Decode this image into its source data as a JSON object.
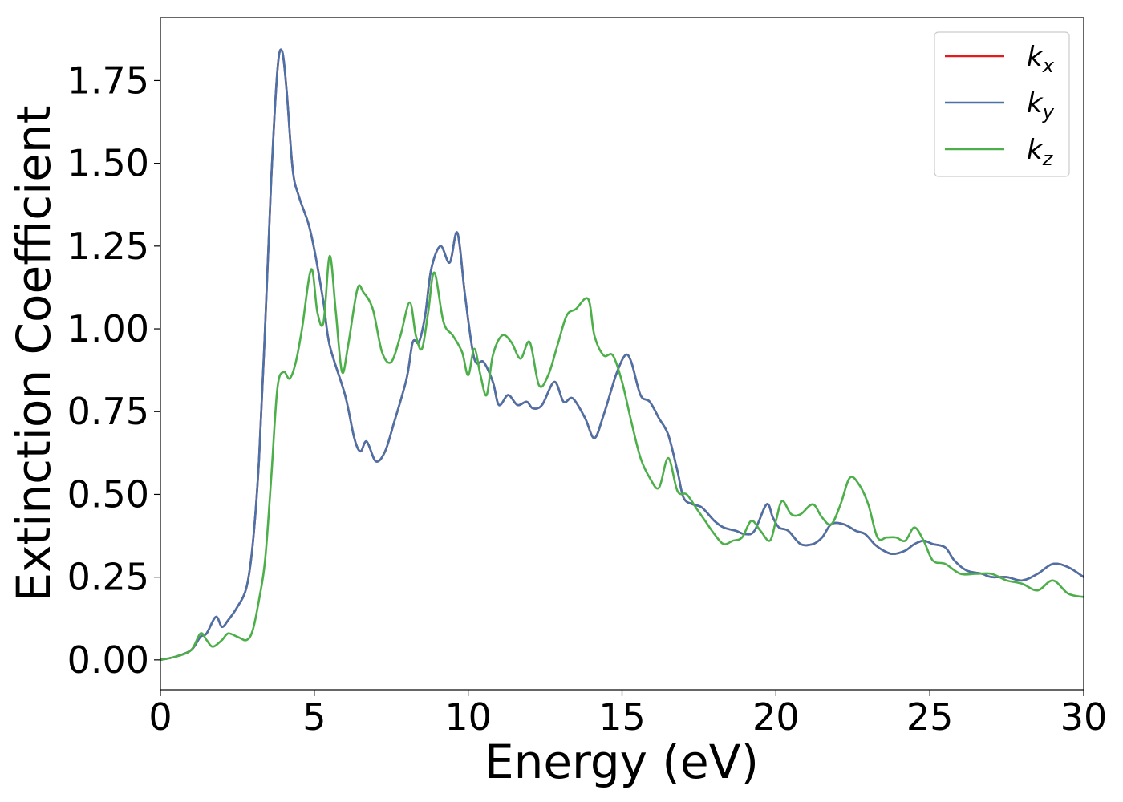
{
  "chart_data": {
    "type": "line",
    "xlabel": "Energy (eV)",
    "ylabel": "Extinction Coefficient",
    "xlim": [
      0,
      30
    ],
    "ylim": [
      -0.09,
      1.94
    ],
    "xticks": [
      0,
      5,
      10,
      15,
      20,
      25,
      30
    ],
    "yticks": [
      0.0,
      0.25,
      0.5,
      0.75,
      1.0,
      1.25,
      1.5,
      1.75
    ],
    "xtick_labels": [
      "0",
      "5",
      "10",
      "15",
      "20",
      "25",
      "30"
    ],
    "ytick_labels": [
      "0.00",
      "0.25",
      "0.50",
      "0.75",
      "1.00",
      "1.25",
      "1.50",
      "1.75"
    ],
    "grid": false,
    "legend_position": "top-right",
    "series": [
      {
        "name": "k_x",
        "label_main": "k",
        "label_sub": "x",
        "color": "#e41a1c",
        "x": [
          0.0,
          0.5,
          1.0,
          1.3,
          1.5,
          1.8,
          2.0,
          2.2,
          2.5,
          2.8,
          3.0,
          3.2,
          3.4,
          3.6,
          3.8,
          3.95,
          4.1,
          4.3,
          4.5,
          4.8,
          5.0,
          5.3,
          5.5,
          6.0,
          6.3,
          6.5,
          6.7,
          7.0,
          7.3,
          7.6,
          8.0,
          8.2,
          8.4,
          8.6,
          8.8,
          9.1,
          9.4,
          9.65,
          9.9,
          10.2,
          10.5,
          10.8,
          11.0,
          11.3,
          11.6,
          11.9,
          12.1,
          12.4,
          12.8,
          13.1,
          13.4,
          13.8,
          14.1,
          14.4,
          14.8,
          15.1,
          15.3,
          15.6,
          15.9,
          16.2,
          16.5,
          16.8,
          17.0,
          17.3,
          17.6,
          18.0,
          18.3,
          18.7,
          19.0,
          19.3,
          19.7,
          19.9,
          20.1,
          20.4,
          20.8,
          21.2,
          21.5,
          21.8,
          22.2,
          22.6,
          22.9,
          23.2,
          23.5,
          23.8,
          24.2,
          24.5,
          24.8,
          25.1,
          25.5,
          25.8,
          26.2,
          26.7,
          27.0,
          27.5,
          28.0,
          28.5,
          29.0,
          29.5,
          30.0
        ],
        "y": [
          0.0,
          0.01,
          0.03,
          0.07,
          0.08,
          0.13,
          0.1,
          0.12,
          0.16,
          0.22,
          0.35,
          0.6,
          1.0,
          1.45,
          1.78,
          1.84,
          1.72,
          1.48,
          1.4,
          1.32,
          1.24,
          1.08,
          0.95,
          0.8,
          0.67,
          0.63,
          0.66,
          0.6,
          0.63,
          0.72,
          0.85,
          0.96,
          0.96,
          1.04,
          1.18,
          1.25,
          1.2,
          1.29,
          1.1,
          0.91,
          0.9,
          0.84,
          0.77,
          0.8,
          0.77,
          0.78,
          0.76,
          0.77,
          0.84,
          0.78,
          0.79,
          0.73,
          0.67,
          0.74,
          0.86,
          0.92,
          0.9,
          0.8,
          0.78,
          0.73,
          0.68,
          0.57,
          0.49,
          0.47,
          0.46,
          0.42,
          0.4,
          0.39,
          0.38,
          0.39,
          0.47,
          0.43,
          0.4,
          0.39,
          0.35,
          0.35,
          0.37,
          0.41,
          0.41,
          0.39,
          0.38,
          0.35,
          0.33,
          0.32,
          0.33,
          0.35,
          0.36,
          0.35,
          0.34,
          0.3,
          0.27,
          0.26,
          0.25,
          0.25,
          0.24,
          0.26,
          0.29,
          0.28,
          0.25
        ]
      },
      {
        "name": "k_y",
        "label_main": "k",
        "label_sub": "y",
        "color": "#4a72a8",
        "x": [
          0.0,
          0.5,
          1.0,
          1.3,
          1.5,
          1.8,
          2.0,
          2.2,
          2.5,
          2.8,
          3.0,
          3.2,
          3.4,
          3.6,
          3.8,
          3.95,
          4.1,
          4.3,
          4.5,
          4.8,
          5.0,
          5.3,
          5.5,
          6.0,
          6.3,
          6.5,
          6.7,
          7.0,
          7.3,
          7.6,
          8.0,
          8.2,
          8.4,
          8.6,
          8.8,
          9.1,
          9.4,
          9.65,
          9.9,
          10.2,
          10.5,
          10.8,
          11.0,
          11.3,
          11.6,
          11.9,
          12.1,
          12.4,
          12.8,
          13.1,
          13.4,
          13.8,
          14.1,
          14.4,
          14.8,
          15.1,
          15.3,
          15.6,
          15.9,
          16.2,
          16.5,
          16.8,
          17.0,
          17.3,
          17.6,
          18.0,
          18.3,
          18.7,
          19.0,
          19.3,
          19.7,
          19.9,
          20.1,
          20.4,
          20.8,
          21.2,
          21.5,
          21.8,
          22.2,
          22.6,
          22.9,
          23.2,
          23.5,
          23.8,
          24.2,
          24.5,
          24.8,
          25.1,
          25.5,
          25.8,
          26.2,
          26.7,
          27.0,
          27.5,
          28.0,
          28.5,
          29.0,
          29.5,
          30.0
        ],
        "y": [
          0.0,
          0.01,
          0.03,
          0.07,
          0.08,
          0.13,
          0.1,
          0.12,
          0.16,
          0.22,
          0.35,
          0.6,
          1.0,
          1.45,
          1.78,
          1.84,
          1.72,
          1.48,
          1.4,
          1.32,
          1.24,
          1.08,
          0.95,
          0.8,
          0.67,
          0.63,
          0.66,
          0.6,
          0.63,
          0.72,
          0.85,
          0.96,
          0.96,
          1.04,
          1.18,
          1.25,
          1.2,
          1.29,
          1.1,
          0.91,
          0.9,
          0.84,
          0.77,
          0.8,
          0.77,
          0.78,
          0.76,
          0.77,
          0.84,
          0.78,
          0.79,
          0.73,
          0.67,
          0.74,
          0.86,
          0.92,
          0.9,
          0.8,
          0.78,
          0.73,
          0.68,
          0.57,
          0.49,
          0.47,
          0.46,
          0.42,
          0.4,
          0.39,
          0.38,
          0.39,
          0.47,
          0.43,
          0.4,
          0.39,
          0.35,
          0.35,
          0.37,
          0.41,
          0.41,
          0.39,
          0.38,
          0.35,
          0.33,
          0.32,
          0.33,
          0.35,
          0.36,
          0.35,
          0.34,
          0.3,
          0.27,
          0.26,
          0.25,
          0.25,
          0.24,
          0.26,
          0.29,
          0.28,
          0.25
        ]
      },
      {
        "name": "k_z",
        "label_main": "k",
        "label_sub": "z",
        "color": "#4daf4a",
        "x": [
          0.0,
          0.5,
          1.0,
          1.3,
          1.5,
          1.7,
          2.0,
          2.2,
          2.5,
          2.8,
          3.0,
          3.2,
          3.4,
          3.6,
          3.8,
          4.0,
          4.2,
          4.4,
          4.6,
          4.9,
          5.1,
          5.3,
          5.5,
          5.7,
          5.9,
          6.1,
          6.4,
          6.6,
          6.9,
          7.2,
          7.5,
          7.8,
          8.1,
          8.3,
          8.5,
          8.7,
          8.9,
          9.2,
          9.5,
          9.8,
          10.0,
          10.2,
          10.4,
          10.6,
          10.8,
          11.1,
          11.4,
          11.7,
          12.0,
          12.3,
          12.6,
          12.9,
          13.2,
          13.5,
          13.9,
          14.1,
          14.4,
          14.7,
          15.0,
          15.3,
          15.6,
          15.9,
          16.2,
          16.5,
          16.8,
          17.1,
          17.4,
          17.7,
          18.0,
          18.3,
          18.6,
          18.9,
          19.2,
          19.5,
          19.8,
          20.0,
          20.2,
          20.5,
          20.8,
          21.2,
          21.5,
          21.8,
          22.1,
          22.4,
          22.7,
          23.0,
          23.3,
          23.6,
          23.9,
          24.2,
          24.5,
          24.8,
          25.1,
          25.5,
          26.0,
          26.5,
          27.0,
          27.5,
          28.0,
          28.5,
          29.0,
          29.5,
          30.0
        ],
        "y": [
          0.0,
          0.01,
          0.03,
          0.08,
          0.06,
          0.04,
          0.06,
          0.08,
          0.07,
          0.06,
          0.09,
          0.18,
          0.3,
          0.55,
          0.82,
          0.87,
          0.85,
          0.9,
          1.0,
          1.18,
          1.05,
          1.02,
          1.22,
          1.05,
          0.87,
          0.95,
          1.12,
          1.11,
          1.06,
          0.93,
          0.9,
          0.98,
          1.08,
          0.98,
          0.94,
          1.05,
          1.17,
          1.02,
          0.98,
          0.93,
          0.86,
          0.94,
          0.86,
          0.8,
          0.92,
          0.98,
          0.96,
          0.91,
          0.96,
          0.83,
          0.86,
          0.95,
          1.04,
          1.06,
          1.09,
          0.98,
          0.92,
          0.92,
          0.84,
          0.72,
          0.61,
          0.55,
          0.52,
          0.61,
          0.51,
          0.5,
          0.46,
          0.42,
          0.38,
          0.35,
          0.36,
          0.37,
          0.42,
          0.39,
          0.36,
          0.42,
          0.48,
          0.44,
          0.44,
          0.47,
          0.43,
          0.41,
          0.47,
          0.55,
          0.53,
          0.47,
          0.37,
          0.37,
          0.37,
          0.36,
          0.4,
          0.36,
          0.3,
          0.29,
          0.26,
          0.26,
          0.26,
          0.24,
          0.23,
          0.21,
          0.24,
          0.2,
          0.19
        ]
      }
    ]
  }
}
